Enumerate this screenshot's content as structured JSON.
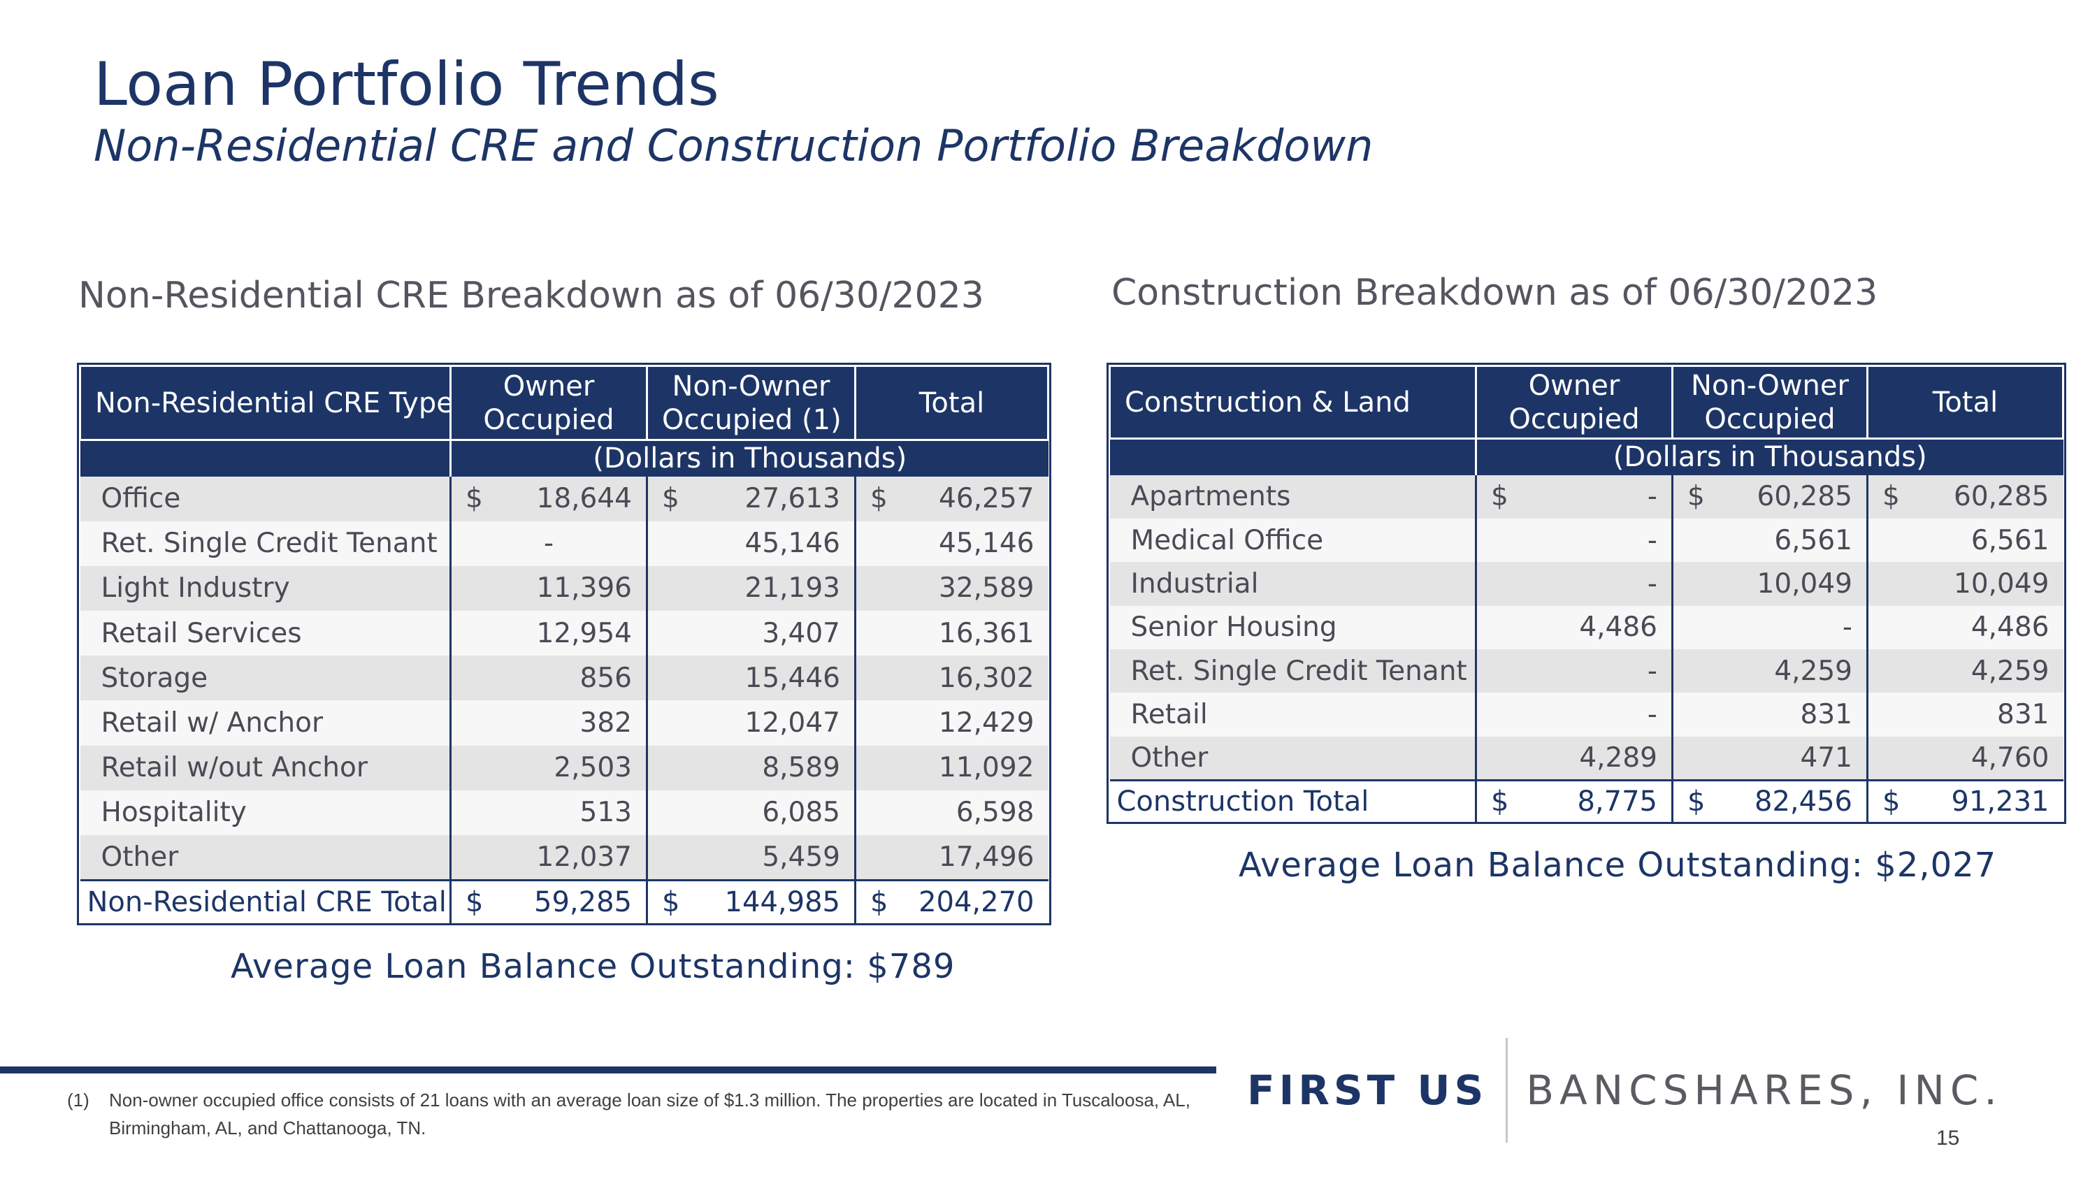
{
  "title": "Loan Portfolio Trends",
  "subtitle": "Non-Residential CRE and Construction Portfolio Breakdown",
  "cre": {
    "heading": "Non-Residential CRE Breakdown as of 06/30/2023",
    "headers": {
      "type": "Non-Residential CRE Type",
      "owner_l1": "Owner",
      "owner_l2": "Occupied",
      "nonowner_l1": "Non-Owner",
      "nonowner_l2": "Occupied (1)",
      "total": "Total"
    },
    "units": "(Dollars in Thousands)",
    "rows": [
      {
        "label": "Office",
        "owner": "18,644",
        "nonowner": "27,613",
        "total": "46,257",
        "owner_cur": "$",
        "nonowner_cur": "$",
        "total_cur": "$"
      },
      {
        "label": "Ret. Single Credit Tenant",
        "owner": "-",
        "nonowner": "45,146",
        "total": "45,146"
      },
      {
        "label": "Light Industry",
        "owner": "11,396",
        "nonowner": "21,193",
        "total": "32,589"
      },
      {
        "label": "Retail Services",
        "owner": "12,954",
        "nonowner": "3,407",
        "total": "16,361"
      },
      {
        "label": "Storage",
        "owner": "856",
        "nonowner": "15,446",
        "total": "16,302"
      },
      {
        "label": "Retail w/ Anchor",
        "owner": "382",
        "nonowner": "12,047",
        "total": "12,429"
      },
      {
        "label": "Retail w/out Anchor",
        "owner": "2,503",
        "nonowner": "8,589",
        "total": "11,092"
      },
      {
        "label": "Hospitality",
        "owner": "513",
        "nonowner": "6,085",
        "total": "6,598"
      },
      {
        "label": "Other",
        "owner": "12,037",
        "nonowner": "5,459",
        "total": "17,496"
      }
    ],
    "total_row": {
      "label": "Non-Residential CRE Total",
      "cur": "$",
      "owner": "59,285",
      "nonowner": "144,985",
      "total": "204,270"
    },
    "average": "Average Loan Balance Outstanding:  $789"
  },
  "construction": {
    "heading": "Construction Breakdown as of 06/30/2023",
    "headers": {
      "type": "Construction & Land",
      "owner_l1": "Owner",
      "owner_l2": "Occupied",
      "nonowner_l1": "Non-Owner",
      "nonowner_l2": "Occupied",
      "total": "Total"
    },
    "units": "(Dollars in Thousands)",
    "rows": [
      {
        "label": "Apartments",
        "owner": "-",
        "nonowner": "60,285",
        "total": "60,285",
        "owner_cur": "$",
        "nonowner_cur": "$",
        "total_cur": "$"
      },
      {
        "label": "Medical Office",
        "owner": "-",
        "nonowner": "6,561",
        "total": "6,561"
      },
      {
        "label": "Industrial",
        "owner": "-",
        "nonowner": "10,049",
        "total": "10,049"
      },
      {
        "label": "Senior Housing",
        "owner": "4,486",
        "nonowner": "-",
        "total": "4,486"
      },
      {
        "label": "Ret. Single Credit Tenant",
        "owner": "-",
        "nonowner": "4,259",
        "total": "4,259"
      },
      {
        "label": "Retail",
        "owner": "-",
        "nonowner": "831",
        "total": "831"
      },
      {
        "label": "Other",
        "owner": "4,289",
        "nonowner": "471",
        "total": "4,760"
      }
    ],
    "total_row": {
      "label": "Construction Total",
      "cur": "$",
      "owner": "8,775",
      "nonowner": "82,456",
      "total": "91,231"
    },
    "average": "Average Loan Balance Outstanding:  $2,027"
  },
  "logo": {
    "first": "FIRST US",
    "rest": "BANCSHARES, INC."
  },
  "footnote": {
    "mark": "(1)",
    "text": "Non-owner occupied office consists of 21 loans with an average loan size of $1.3 million. The properties are located in Tuscaloosa, AL, Birmingham, AL, and Chattanooga, TN."
  },
  "page_number": "15",
  "colors": {
    "navy": "#1d3566",
    "shade": "#e4e4e4",
    "light": "#f7f7f7"
  }
}
